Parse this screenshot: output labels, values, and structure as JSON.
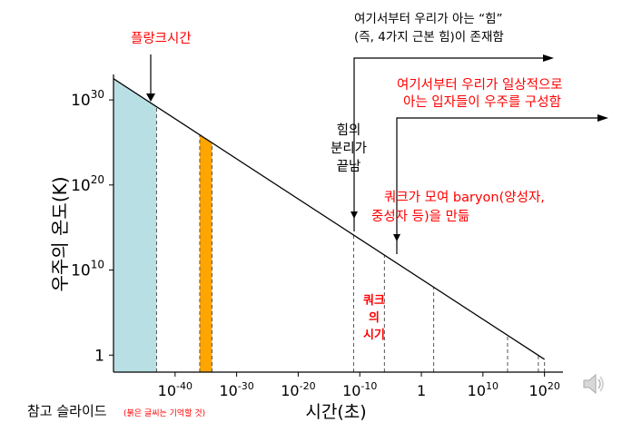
{
  "chart_data": {
    "type": "line",
    "title": "",
    "xlabel": "시간(초)",
    "ylabel": "우주의 온도(K)",
    "x_scale": "log",
    "y_scale": "log",
    "xlim": [
      "1e-50",
      "1e23"
    ],
    "ylim": [
      "1e-2",
      "1e33"
    ],
    "x_ticks": [
      {
        "exp": -40,
        "label": "10-40",
        "base": "10",
        "sup": "-40"
      },
      {
        "exp": -30,
        "label": "10-30",
        "base": "10",
        "sup": "-30"
      },
      {
        "exp": -20,
        "label": "10-20",
        "base": "10",
        "sup": "-20"
      },
      {
        "exp": -10,
        "label": "10-10",
        "base": "10",
        "sup": "-10"
      },
      {
        "exp": 0,
        "label": "1",
        "base": "1",
        "sup": ""
      },
      {
        "exp": 10,
        "label": "1010",
        "base": "10",
        "sup": "10"
      },
      {
        "exp": 20,
        "label": "1020",
        "base": "10",
        "sup": "20"
      }
    ],
    "y_ticks": [
      {
        "exp": 30,
        "label": "1030",
        "base": "10",
        "sup": "30"
      },
      {
        "exp": 20,
        "label": "1020",
        "base": "10",
        "sup": "20"
      },
      {
        "exp": 10,
        "label": "1010",
        "base": "10",
        "sup": "10"
      },
      {
        "exp": 0,
        "label": "1",
        "base": "1",
        "sup": ""
      }
    ],
    "series": [
      {
        "x_exp": [
          -50,
          20
        ],
        "y_exp": [
          32.5,
          -0.5
        ]
      }
    ],
    "shaded_regions": [
      {
        "x_from_exp": -50,
        "x_to_exp": -43,
        "color": "#b8dfe4"
      },
      {
        "x_from_exp": -36,
        "x_to_exp": -34,
        "color": "#ffa500"
      }
    ],
    "markers_x_exp": [
      -43,
      -36,
      -34,
      -11,
      -6,
      2,
      14,
      19,
      20
    ],
    "annotations": {
      "planck": "플랑크시간",
      "forces_top": "여기서부터 우리가 아는 “힘”",
      "forces_bottom": "(즉, 4가지 근본 힘)이 존재함",
      "particles_top": "여기서부터 우리가 일상적으로",
      "particles_bottom": "아는 입자들이 우주를 구성함",
      "separation_1": "힘의",
      "separation_2": "분리가",
      "separation_3": "끝남",
      "baryon_1": "쿼크가 모여 baryon(양성자,",
      "baryon_2": "중성자 등)을 만듦",
      "quark_1": "쿼크",
      "quark_2": "의",
      "quark_3": "시기"
    }
  },
  "footer": {
    "reference": "참고 슬라이드",
    "reference_note": "(붉은 글씨는 기억할 것)"
  },
  "icons": {
    "speaker": "speaker-icon"
  }
}
